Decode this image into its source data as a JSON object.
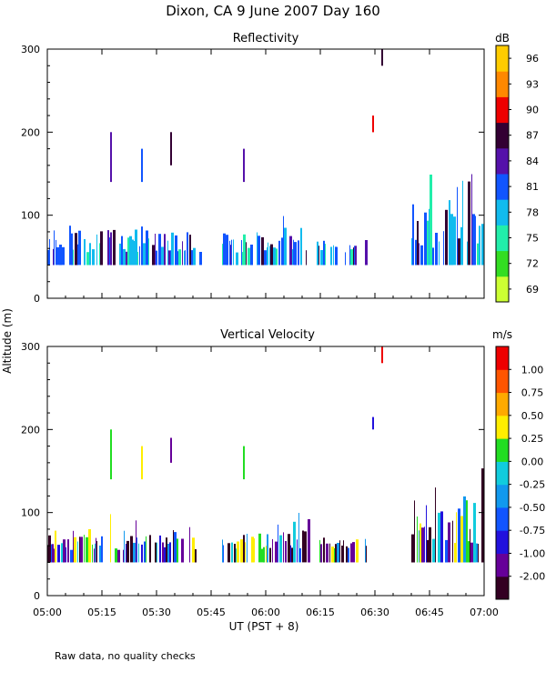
{
  "figure": {
    "title": "Dixon, CA  9 June 2007  Day 160",
    "ylabel": "Altitude (m)",
    "xlabel": "UT  (PST + 8)",
    "footnote": "Raw data, no quality checks"
  },
  "chart_data": [
    {
      "type": "heatmap",
      "title": "Reflectivity",
      "x_range_minutes": [
        0,
        120
      ],
      "xticks": [
        "05:00",
        "05:15",
        "05:30",
        "05:45",
        "06:00",
        "06:15",
        "06:30",
        "06:45",
        "07:00"
      ],
      "ylim": [
        0,
        300
      ],
      "yticks": [
        0,
        100,
        200,
        300
      ],
      "colorbar": {
        "unit": "dB",
        "labels": [
          "69",
          "72",
          "75",
          "78",
          "81",
          "84",
          "87",
          "90",
          "93",
          "96"
        ],
        "colors": [
          "#ccff33",
          "#33dd22",
          "#22eeaa",
          "#11bbee",
          "#1155ff",
          "#5511aa",
          "#330033",
          "#ee0000",
          "#ff8800",
          "#ffcc00"
        ]
      },
      "outliers": [
        {
          "t": 17.5,
          "y0": 140,
          "y1": 200,
          "c": 5
        },
        {
          "t": 26.0,
          "y0": 140,
          "y1": 180,
          "c": 4
        },
        {
          "t": 34.0,
          "y0": 160,
          "y1": 200,
          "c": 6
        },
        {
          "t": 54.0,
          "y0": 140,
          "y1": 180,
          "c": 5
        },
        {
          "t": 89.5,
          "y0": 200,
          "y1": 220,
          "c": 7
        },
        {
          "t": 92.0,
          "y0": 280,
          "y1": 300,
          "c": 6
        }
      ],
      "dense_segments": [
        {
          "t0": 0,
          "t1": 42,
          "base": 40,
          "top_min": 55,
          "top_max": 105
        },
        {
          "t0": 48,
          "t1": 72,
          "base": 40,
          "top_min": 55,
          "top_max": 100
        },
        {
          "t0": 74,
          "t1": 88,
          "base": 40,
          "top_min": 55,
          "top_max": 85
        },
        {
          "t0": 100,
          "t1": 120,
          "base": 40,
          "top_min": 60,
          "top_max": 160
        }
      ],
      "palette_mix": [
        3,
        3,
        4,
        4,
        5,
        6,
        2,
        3,
        4
      ]
    },
    {
      "type": "heatmap",
      "title": "Vertical Velocity",
      "x_range_minutes": [
        0,
        120
      ],
      "xticks": [
        "05:00",
        "05:15",
        "05:30",
        "05:45",
        "06:00",
        "06:15",
        "06:30",
        "06:45",
        "07:00"
      ],
      "ylim": [
        0,
        300
      ],
      "yticks": [
        0,
        100,
        200,
        300
      ],
      "colorbar": {
        "unit": "m/s",
        "labels": [
          "-2.00",
          "-1.00",
          "-0.75",
          "-0.50",
          "-0.25",
          "0.00",
          "0.25",
          "0.50",
          "0.75",
          "1.00"
        ],
        "colors": [
          "#330022",
          "#660099",
          "#2211dd",
          "#1155ff",
          "#1199ee",
          "#11ccdd",
          "#22dd22",
          "#ffee00",
          "#ffaa00",
          "#ff5500",
          "#ee0000"
        ]
      },
      "outliers": [
        {
          "t": 17.5,
          "y0": 140,
          "y1": 200,
          "c": 6
        },
        {
          "t": 26.0,
          "y0": 140,
          "y1": 180,
          "c": 7
        },
        {
          "t": 34.0,
          "y0": 160,
          "y1": 190,
          "c": 1
        },
        {
          "t": 54.0,
          "y0": 140,
          "y1": 180,
          "c": 6
        },
        {
          "t": 89.5,
          "y0": 200,
          "y1": 215,
          "c": 2
        },
        {
          "t": 92.0,
          "y0": 280,
          "y1": 300,
          "c": 10
        }
      ],
      "dense_segments": [
        {
          "t0": 0,
          "t1": 42,
          "base": 40,
          "top_min": 55,
          "top_max": 100
        },
        {
          "t0": 48,
          "t1": 72,
          "base": 40,
          "top_min": 55,
          "top_max": 100
        },
        {
          "t0": 74,
          "t1": 88,
          "base": 40,
          "top_min": 55,
          "top_max": 85
        },
        {
          "t0": 100,
          "t1": 120,
          "base": 40,
          "top_min": 60,
          "top_max": 165
        }
      ],
      "palette_mix": [
        0,
        1,
        2,
        3,
        4,
        5,
        6,
        7,
        1,
        0
      ]
    }
  ]
}
